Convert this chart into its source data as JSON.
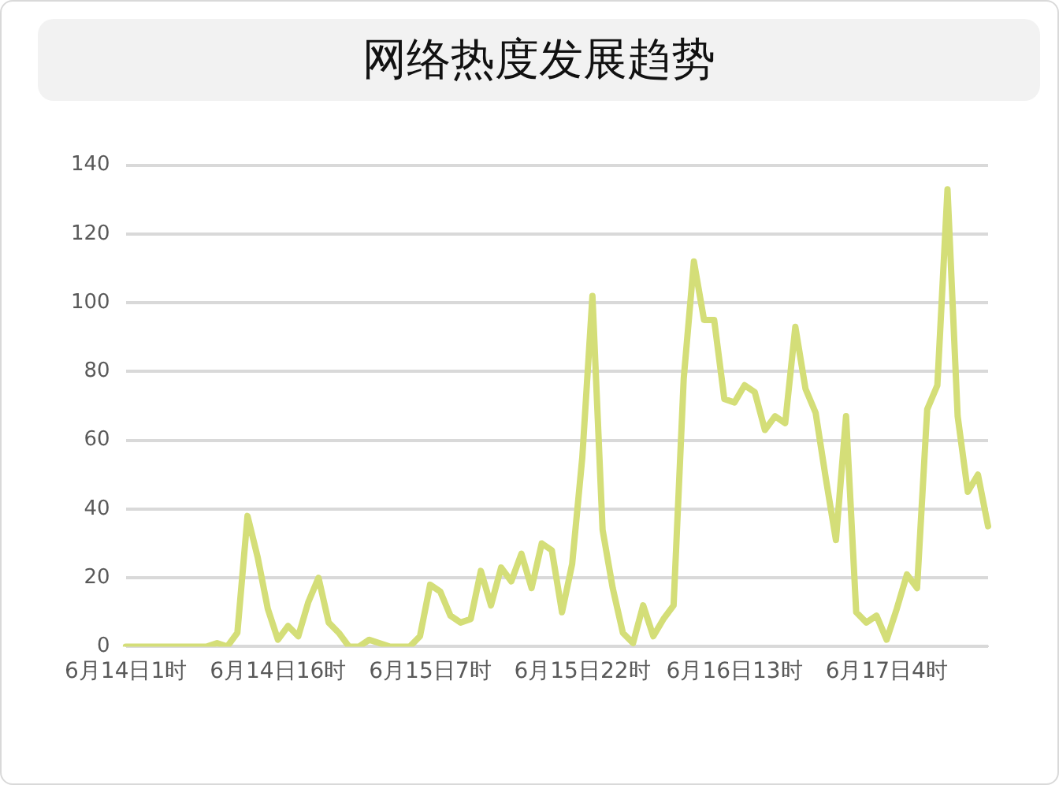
{
  "chart_data": {
    "type": "line",
    "title": "网络热度发展趋势",
    "categories": [
      "6月14日1时",
      null,
      null,
      null,
      null,
      null,
      null,
      null,
      null,
      null,
      null,
      null,
      null,
      null,
      null,
      "6月14日16时",
      null,
      null,
      null,
      null,
      null,
      null,
      null,
      null,
      null,
      null,
      null,
      null,
      null,
      null,
      "6月15日7时",
      null,
      null,
      null,
      null,
      null,
      null,
      null,
      null,
      null,
      null,
      null,
      null,
      null,
      null,
      "6月15日22时",
      null,
      null,
      null,
      null,
      null,
      null,
      null,
      null,
      null,
      null,
      null,
      null,
      null,
      null,
      "6月16日13时",
      null,
      null,
      null,
      null,
      null,
      null,
      null,
      null,
      null,
      null,
      null,
      null,
      null,
      null,
      "6月17日4时",
      null,
      null,
      null,
      null,
      null,
      null,
      null,
      null,
      null,
      null
    ],
    "series": [
      {
        "color": "#d4de78",
        "values": [
          0,
          0,
          0,
          0,
          0,
          0,
          0,
          0,
          0,
          1,
          0,
          4,
          38,
          26,
          11,
          2,
          6,
          3,
          13,
          20,
          7,
          4,
          0,
          0,
          2,
          1,
          0,
          0,
          0,
          3,
          18,
          16,
          9,
          7,
          8,
          22,
          12,
          23,
          19,
          27,
          17,
          30,
          28,
          10,
          24,
          55,
          102,
          34,
          17,
          4,
          1,
          12,
          3,
          8,
          12,
          78,
          112,
          95,
          95,
          72,
          71,
          76,
          74,
          63,
          67,
          65,
          93,
          75,
          68,
          49,
          31,
          67,
          10,
          7,
          9,
          2,
          11,
          21,
          17,
          69,
          76,
          133,
          67,
          45,
          50,
          35
        ]
      }
    ],
    "ylim": [
      0,
      140
    ],
    "yticks": [
      0,
      20,
      40,
      60,
      80,
      100,
      120,
      140
    ],
    "grid": "y",
    "legend": false,
    "marker": "none",
    "line_style": "solid"
  }
}
